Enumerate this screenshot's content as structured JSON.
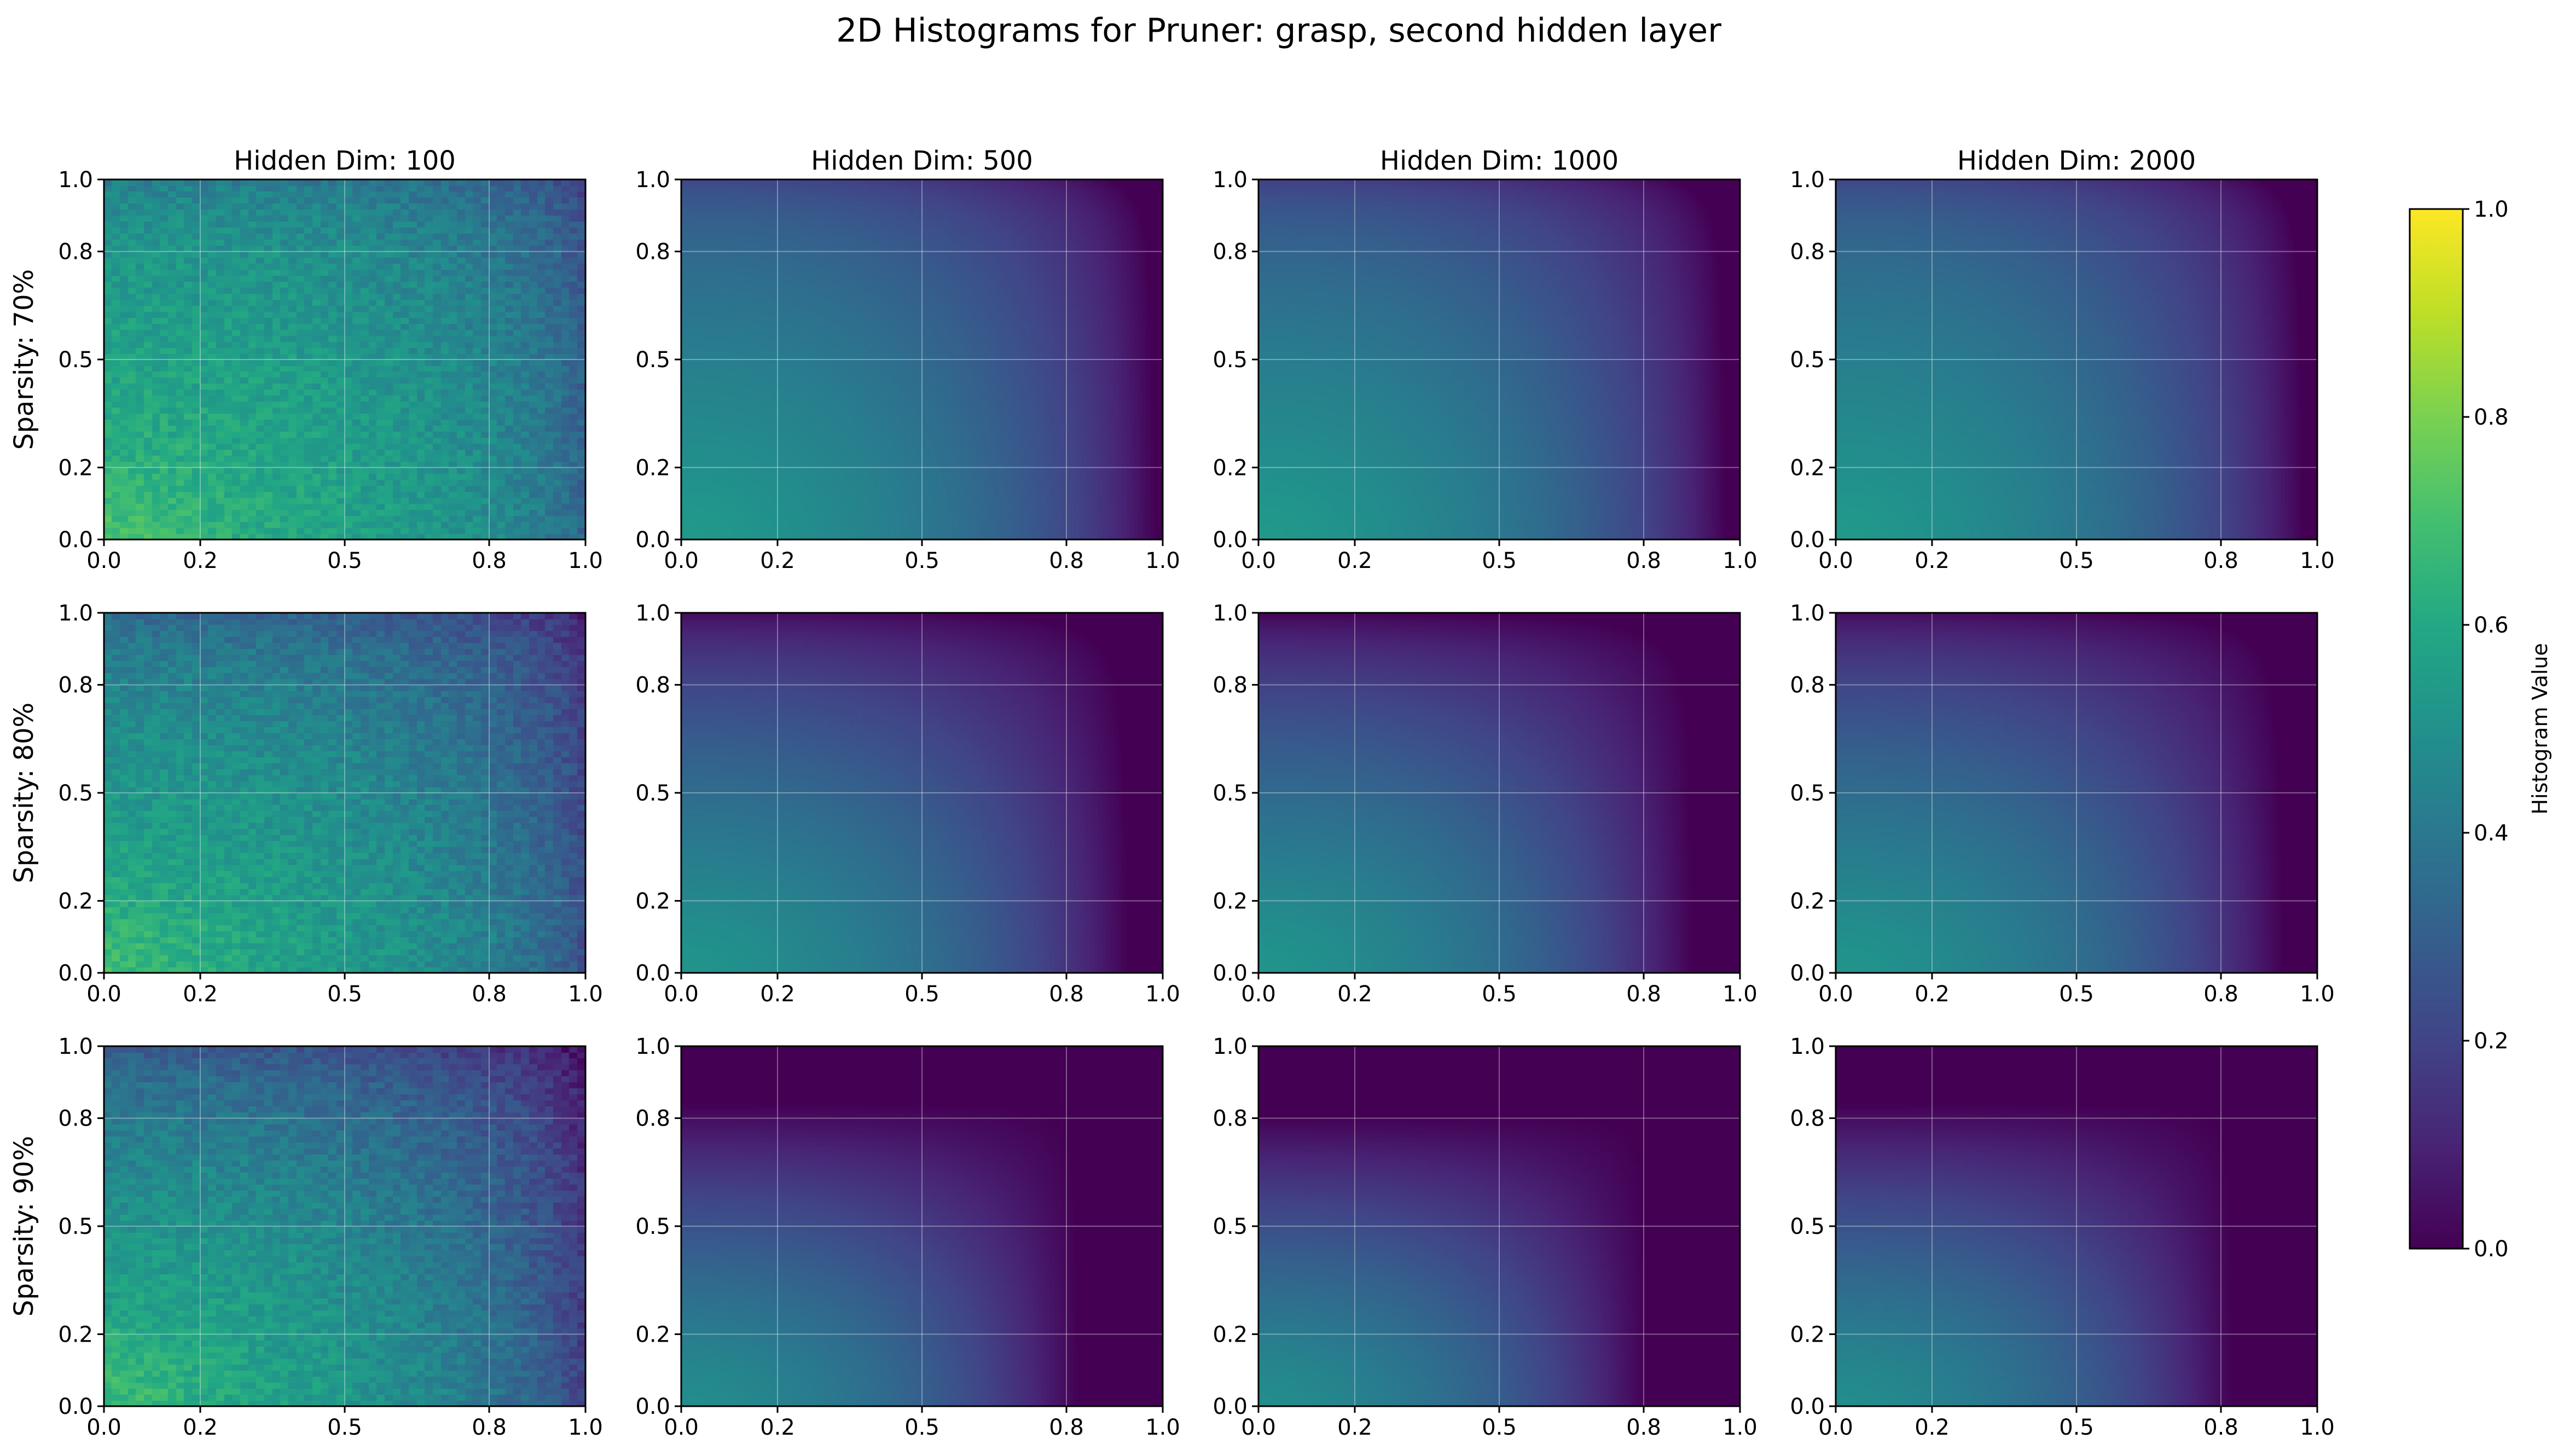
{
  "chart_data": {
    "type": "heatmap",
    "title": "2D Histograms for Pruner: grasp, second hidden layer",
    "column_titles": [
      "Hidden Dim: 100",
      "Hidden Dim: 500",
      "Hidden Dim: 1000",
      "Hidden Dim: 2000"
    ],
    "row_labels": [
      "Sparsity: 70%",
      "Sparsity: 80%",
      "Sparsity: 90%"
    ],
    "x_ticks": [
      "0.0",
      "0.2",
      "0.5",
      "0.8",
      "1.0"
    ],
    "y_ticks": [
      "0.0",
      "0.2",
      "0.5",
      "0.8",
      "1.0"
    ],
    "xlim": [
      0,
      1
    ],
    "ylim": [
      0,
      1
    ],
    "grid": true,
    "colormap": "viridis",
    "colorbar": {
      "label": "Histogram Value",
      "range": [
        0,
        1
      ],
      "ticks": [
        "0.0",
        "0.2",
        "0.4",
        "0.6",
        "0.8",
        "1.0"
      ]
    },
    "panels": [
      [
        {
          "base": 0.62,
          "x_falloff": 0.35,
          "y_falloff": 0.22,
          "noise": 0.12,
          "bins": 60,
          "peak_corner": "bottom-left"
        },
        {
          "base": 0.5,
          "x_falloff": 0.9,
          "y_falloff": 0.45,
          "noise": 0.0,
          "bins": 120,
          "peak_corner": "bottom-left"
        },
        {
          "base": 0.5,
          "x_falloff": 0.95,
          "y_falloff": 0.5,
          "noise": 0.0,
          "bins": 120,
          "peak_corner": "bottom-left"
        },
        {
          "base": 0.5,
          "x_falloff": 0.95,
          "y_falloff": 0.45,
          "noise": 0.0,
          "bins": 120,
          "peak_corner": "bottom-left"
        }
      ],
      [
        {
          "base": 0.6,
          "x_falloff": 0.45,
          "y_falloff": 0.35,
          "noise": 0.12,
          "bins": 60,
          "peak_corner": "bottom-left"
        },
        {
          "base": 0.48,
          "x_falloff": 1.1,
          "y_falloff": 0.8,
          "noise": 0.0,
          "bins": 120,
          "peak_corner": "bottom-left"
        },
        {
          "base": 0.48,
          "x_falloff": 1.2,
          "y_falloff": 0.85,
          "noise": 0.0,
          "bins": 120,
          "peak_corner": "bottom-left"
        },
        {
          "base": 0.48,
          "x_falloff": 1.1,
          "y_falloff": 0.8,
          "noise": 0.0,
          "bins": 120,
          "peak_corner": "bottom-left"
        }
      ],
      [
        {
          "base": 0.6,
          "x_falloff": 0.55,
          "y_falloff": 0.45,
          "noise": 0.12,
          "bins": 60,
          "peak_corner": "bottom-left"
        },
        {
          "base": 0.45,
          "x_falloff": 1.5,
          "y_falloff": 1.3,
          "noise": 0.0,
          "bins": 120,
          "peak_corner": "bottom-left"
        },
        {
          "base": 0.45,
          "x_falloff": 1.6,
          "y_falloff": 1.4,
          "noise": 0.0,
          "bins": 120,
          "peak_corner": "bottom-left"
        },
        {
          "base": 0.45,
          "x_falloff": 1.5,
          "y_falloff": 1.3,
          "noise": 0.0,
          "bins": 120,
          "peak_corner": "bottom-left"
        }
      ]
    ]
  }
}
